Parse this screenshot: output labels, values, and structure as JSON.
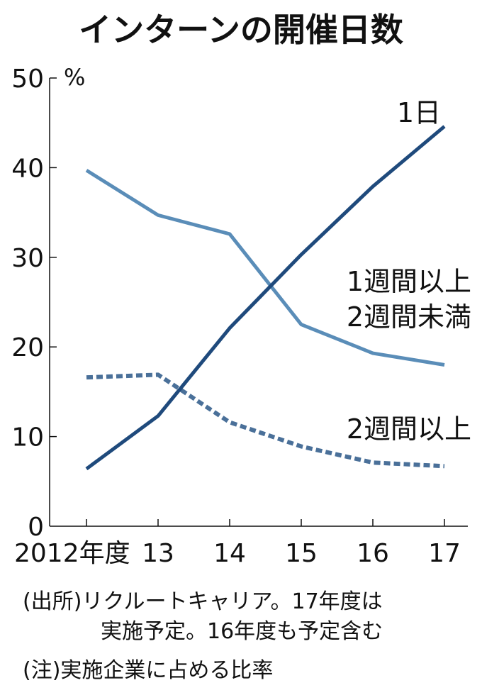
{
  "chart_data": {
    "type": "line",
    "title": "インターンの開催日数",
    "y_unit": "%",
    "ylim": [
      0,
      50
    ],
    "y_ticks": [
      "0",
      "10",
      "20",
      "30",
      "40",
      "50"
    ],
    "x": [
      "2012",
      "2013",
      "2014",
      "2015",
      "2016",
      "2017"
    ],
    "x_tick_labels": [
      "2012年度",
      "13",
      "14",
      "15",
      "16",
      "17"
    ],
    "grid": false,
    "legend": "direct labels at right",
    "series": [
      {
        "name": "1日",
        "values": [
          6.4,
          12.3,
          22.1,
          30.3,
          37.9,
          44.6
        ],
        "color": "#1f4a7c",
        "style": "solid"
      },
      {
        "name": "1週間以上2週間未満",
        "name_lines": [
          "1週間以上",
          "2週間未満"
        ],
        "values": [
          39.7,
          34.7,
          32.6,
          22.5,
          19.3,
          18.0
        ],
        "color": "#5a8db8",
        "style": "solid"
      },
      {
        "name": "2週間以上",
        "values": [
          16.6,
          16.9,
          11.6,
          8.9,
          7.1,
          6.7
        ],
        "color": "#4a7099",
        "style": "dashed"
      }
    ]
  },
  "notes": [
    "(出所)リクルートキャリア。17年度は",
    "実施予定。16年度も予定含む",
    "(注)実施企業に占める比率"
  ]
}
